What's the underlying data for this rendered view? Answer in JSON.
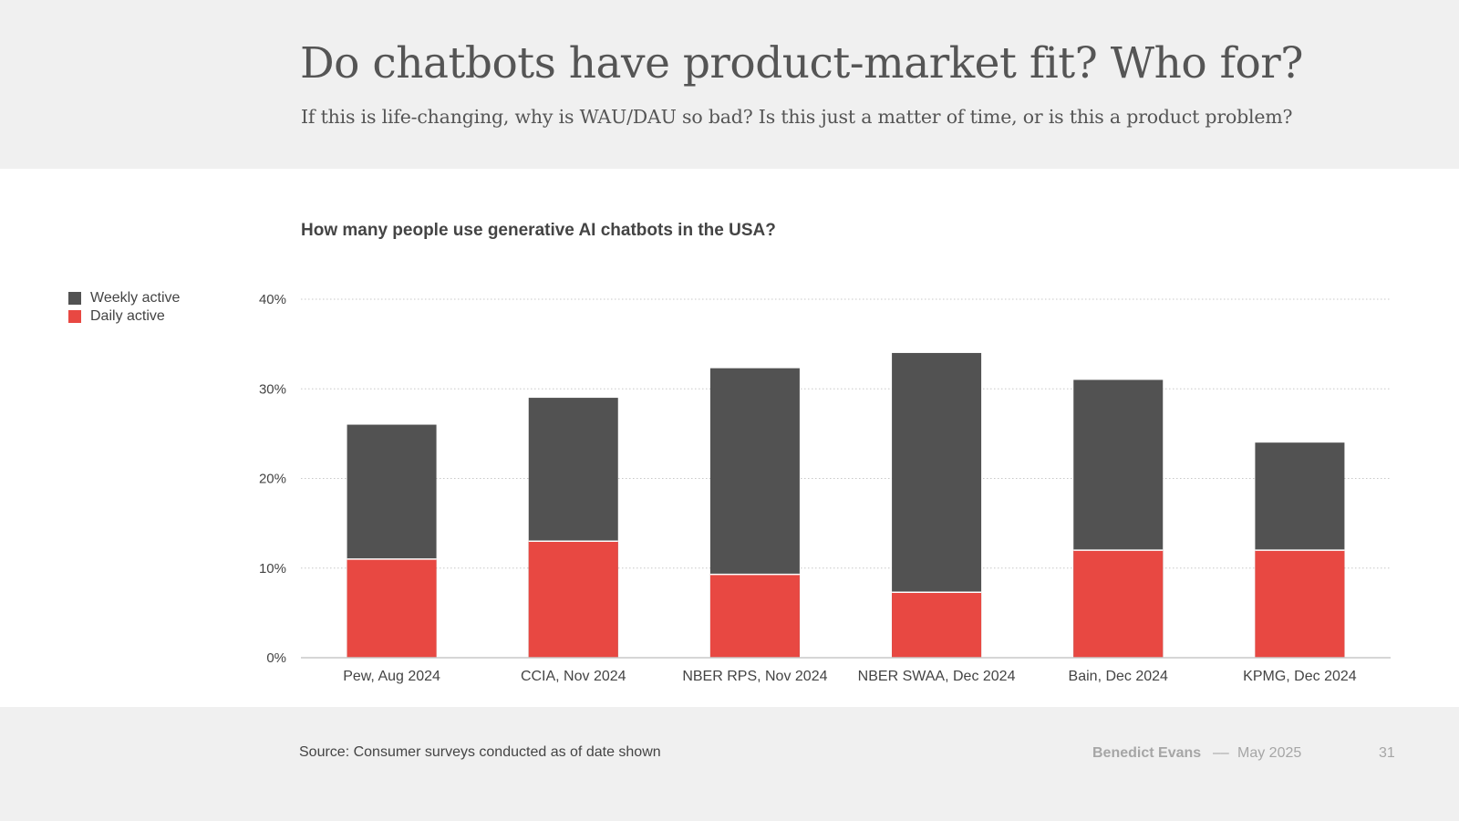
{
  "slide": {
    "title": "Do chatbots have product-market fit? Who for?",
    "subtitle": "If this is life-changing, why is WAU/DAU so bad? Is this just a matter of time, or is this a product problem?"
  },
  "colors": {
    "weekly": "#525252",
    "daily": "#e84842",
    "grid": "#c8c8c8",
    "axis": "#c8c8c8"
  },
  "chart_data": {
    "type": "bar",
    "stacked": false,
    "overlay": true,
    "title": "How many people use generative AI chatbots in the USA?",
    "categories": [
      "Pew, Aug 2024",
      "CCIA, Nov 2024",
      "NBER RPS, Nov 2024",
      "NBER SWAA, Dec 2024",
      "Bain, Dec 2024",
      "KPMG, Dec 2024"
    ],
    "series": [
      {
        "name": "Weekly active",
        "values": [
          26,
          29,
          32.3,
          34,
          31,
          24
        ]
      },
      {
        "name": "Daily active",
        "values": [
          11,
          13,
          9.3,
          7.3,
          12,
          12
        ]
      }
    ],
    "ylim": [
      0,
      40
    ],
    "yticks": [
      0,
      10,
      20,
      30,
      40
    ],
    "ytick_labels": [
      "0%",
      "10%",
      "20%",
      "30%",
      "40%"
    ],
    "grid": true,
    "legend_position": "left"
  },
  "footer": {
    "source": "Source: Consumer surveys conducted as of date shown",
    "author": "Benedict Evans",
    "separator": "––",
    "date": "May 2025",
    "page": "31"
  }
}
